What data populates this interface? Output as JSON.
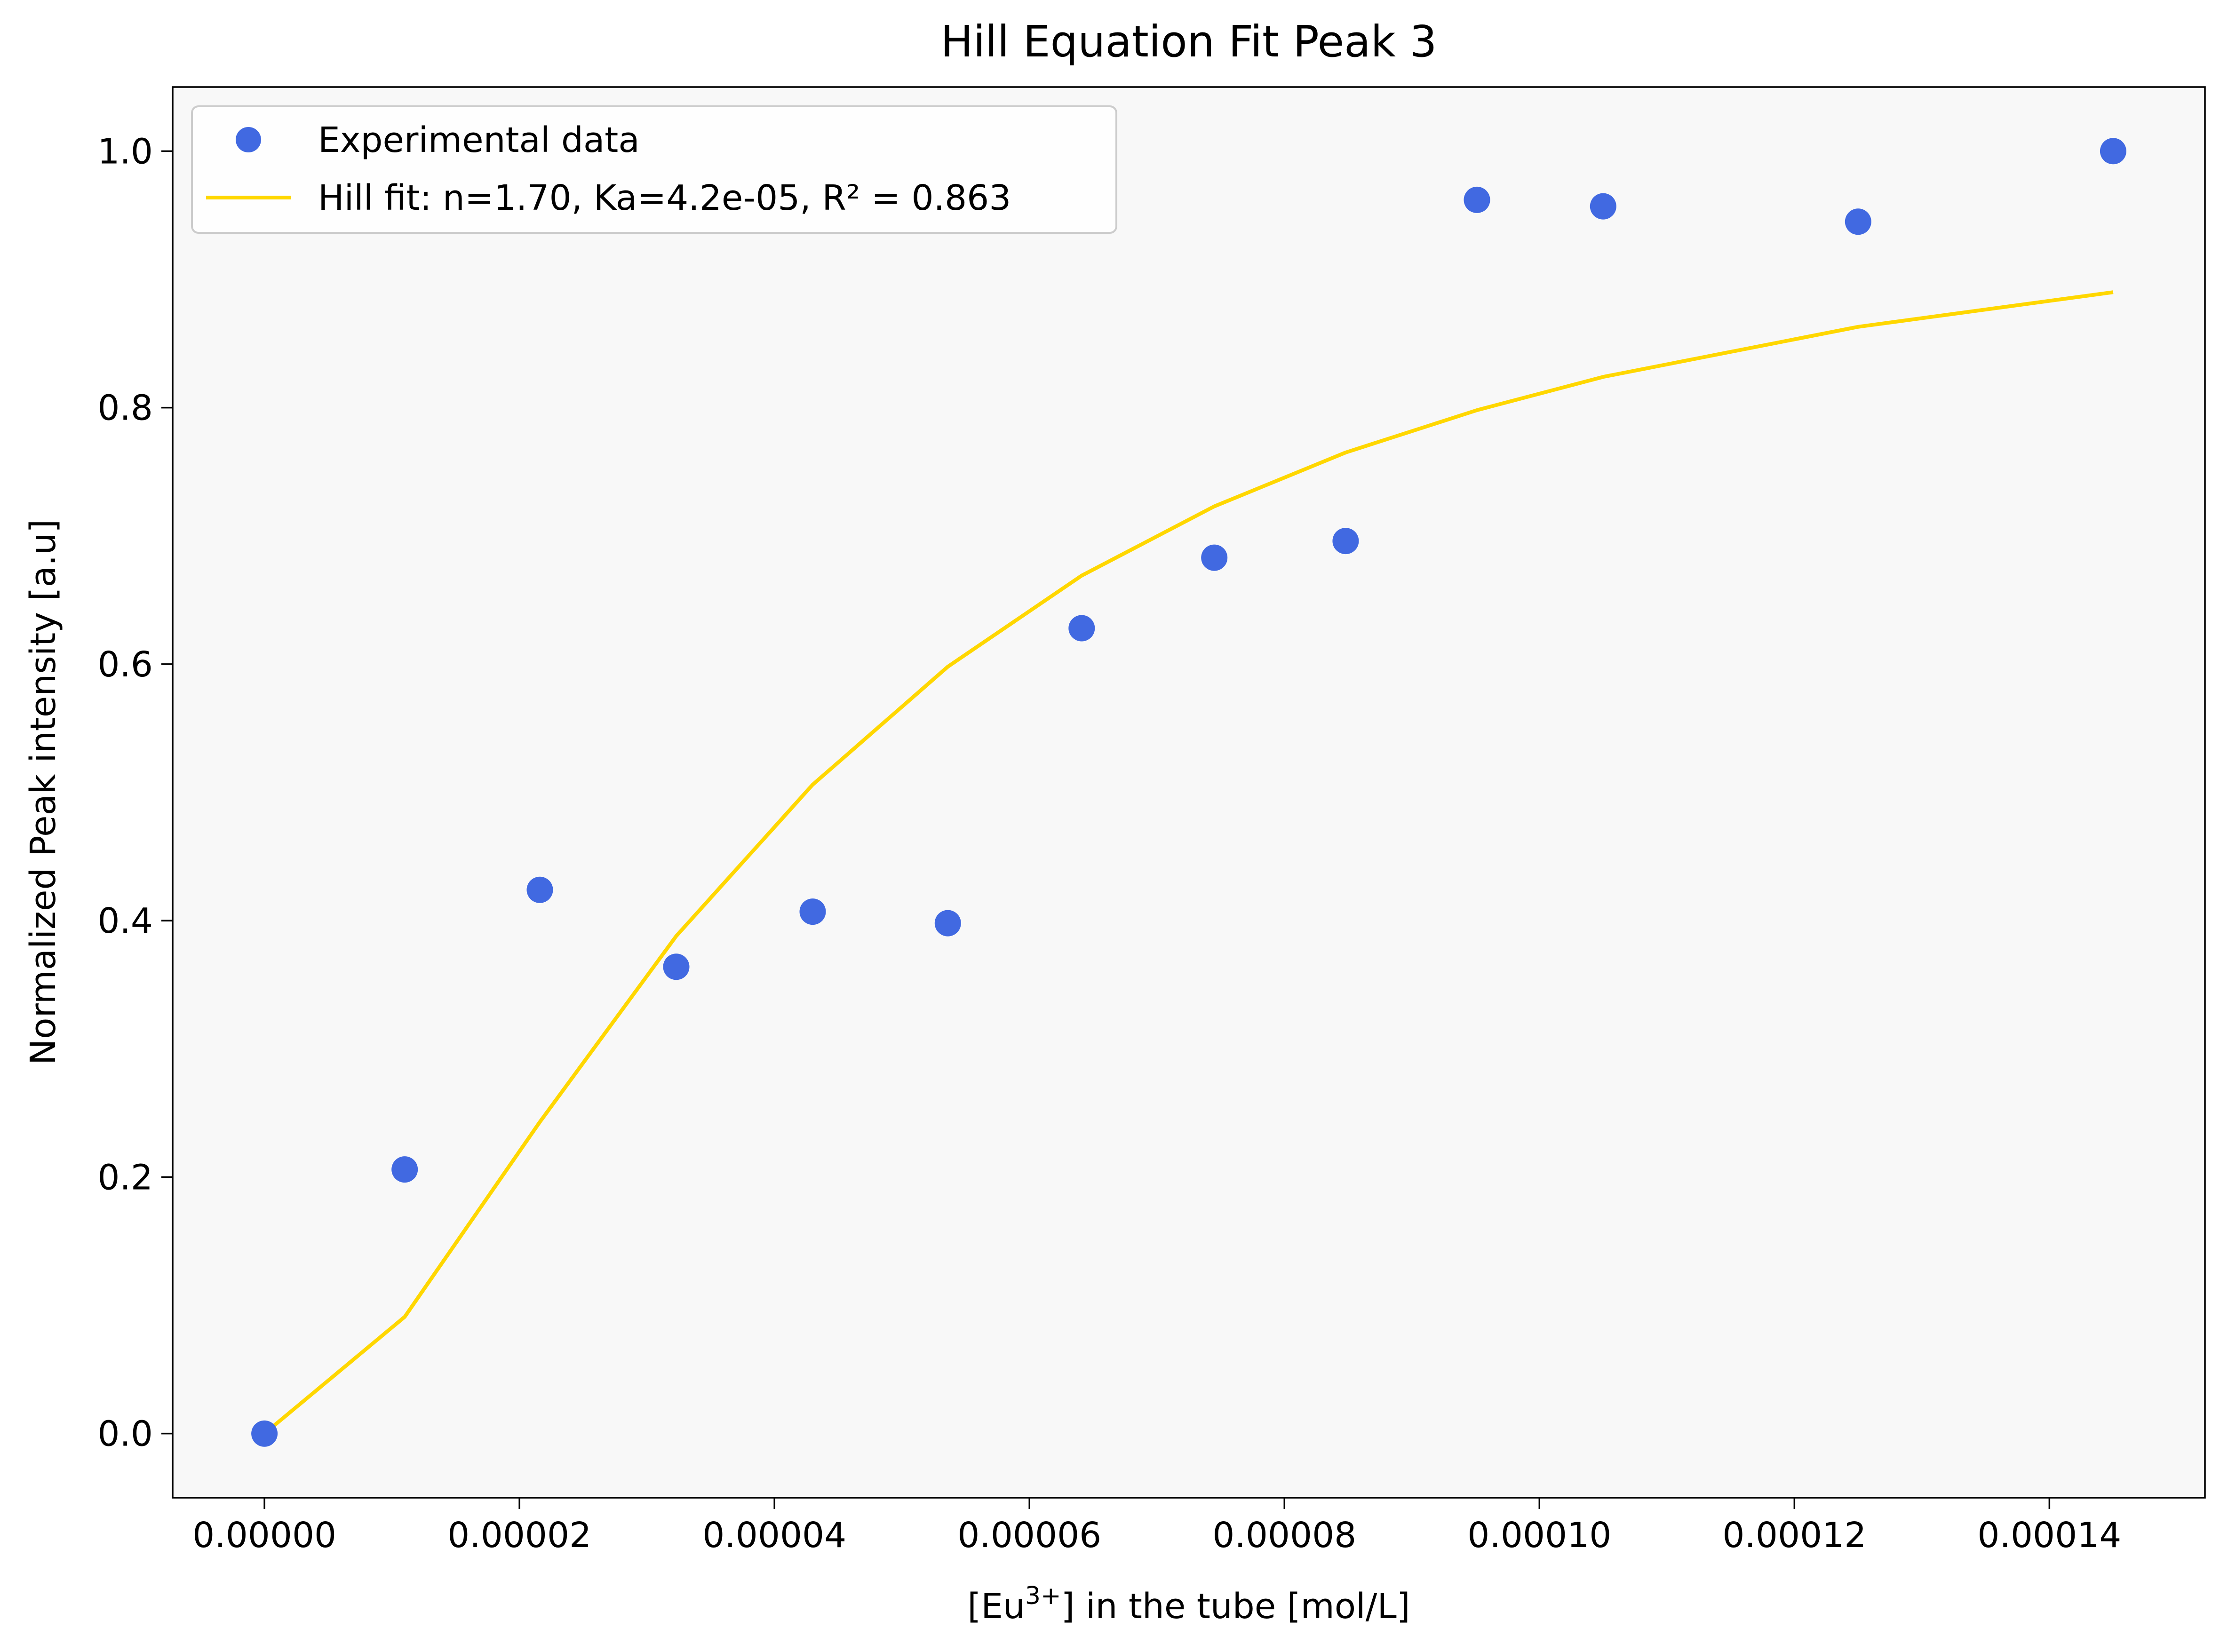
{
  "chart_data": {
    "type": "scatter",
    "title": "Hill Equation Fit Peak 3",
    "xlabel": "[Eu³⁺] in the tube [mol/L]",
    "xlabel_parts": {
      "pre": "[Eu",
      "sup": "3+",
      "post": "] in the tube [mol/L]"
    },
    "ylabel": "Normalized Peak intensity [a.u]",
    "xlim": [
      -7.2e-06,
      0.0001522
    ],
    "ylim": [
      -0.05,
      1.05
    ],
    "xticks": [
      0,
      2e-05,
      4e-05,
      6e-05,
      8e-05,
      0.0001,
      0.00012,
      0.00014
    ],
    "xtick_labels": [
      "0.00000",
      "0.00002",
      "0.00004",
      "0.00006",
      "0.00008",
      "0.00010",
      "0.00012",
      "0.00014"
    ],
    "yticks": [
      0,
      0.2,
      0.4,
      0.6,
      0.8,
      1.0
    ],
    "ytick_labels": [
      "0.0",
      "0.2",
      "0.4",
      "0.6",
      "0.8",
      "1.0"
    ],
    "grid": false,
    "legend_position": "upper-left",
    "series": [
      {
        "name": "Experimental data",
        "kind": "scatter",
        "color": "#4169e1",
        "x": [
          0.0,
          1.1e-05,
          2.16e-05,
          3.23e-05,
          4.3e-05,
          5.36e-05,
          6.41e-05,
          7.45e-05,
          8.48e-05,
          9.51e-05,
          0.000105,
          0.000125,
          0.000145
        ],
        "y": [
          0.0,
          0.206,
          0.424,
          0.364,
          0.407,
          0.398,
          0.628,
          0.683,
          0.696,
          0.962,
          0.957,
          0.945,
          1.0
        ]
      },
      {
        "name": "Hill fit: n=1.70, Ka=4.2e-05, R² = 0.863",
        "kind": "line",
        "color": "#ffd700",
        "x": [
          0.0,
          1.1e-05,
          2.16e-05,
          3.23e-05,
          4.3e-05,
          5.36e-05,
          6.41e-05,
          7.45e-05,
          8.48e-05,
          9.51e-05,
          0.000105,
          0.000125,
          0.000145
        ],
        "y": [
          0.0,
          0.091,
          0.243,
          0.388,
          0.506,
          0.598,
          0.669,
          0.723,
          0.765,
          0.798,
          0.824,
          0.863,
          0.89
        ]
      }
    ]
  },
  "style": {
    "plot_background": "#f8f8f8",
    "axis_color": "#000000"
  }
}
